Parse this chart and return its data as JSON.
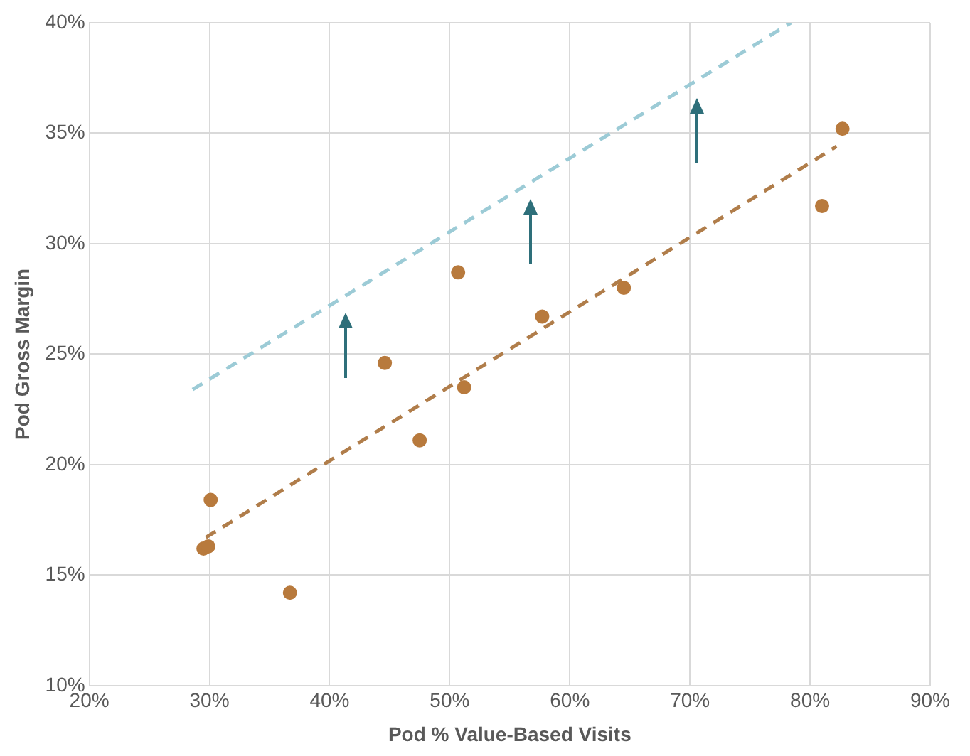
{
  "chart_data": {
    "type": "scatter",
    "xlabel": "Pod % Value-Based Visits",
    "ylabel": "Pod Gross Margin",
    "xlim": [
      20,
      90
    ],
    "xticks": [
      {
        "value": 20,
        "label": "20%"
      },
      {
        "value": 30,
        "label": "30%"
      },
      {
        "value": 40,
        "label": "40%"
      },
      {
        "value": 50,
        "label": "50%"
      },
      {
        "value": 60,
        "label": "60%"
      },
      {
        "value": 70,
        "label": "70%"
      },
      {
        "value": 80,
        "label": "80%"
      },
      {
        "value": 90,
        "label": "90%"
      }
    ],
    "ylim": [
      10,
      40
    ],
    "yticks": [
      {
        "value": 10,
        "label": "10%"
      },
      {
        "value": 15,
        "label": "15%"
      },
      {
        "value": 20,
        "label": "20%"
      },
      {
        "value": 25,
        "label": "25%"
      },
      {
        "value": 30,
        "label": "30%"
      },
      {
        "value": 35,
        "label": "35%"
      },
      {
        "value": 40,
        "label": "40%"
      }
    ],
    "grid": true,
    "marker": "circle",
    "series": [
      {
        "type": "scatter",
        "color": "#b87a3d",
        "x": [
          29.5,
          29.9,
          30.1,
          36.7,
          44.6,
          47.5,
          50.7,
          51.2,
          57.7,
          64.5,
          81.0,
          82.7
        ],
        "values": [
          16.2,
          16.3,
          18.4,
          14.2,
          24.6,
          21.1,
          28.7,
          23.5,
          26.7,
          28.0,
          31.7,
          35.2
        ]
      },
      {
        "type": "line",
        "color": "#b07d4a",
        "line_style": "dashed",
        "marker": "none",
        "x": [
          29.7,
          82.2
        ],
        "values": [
          16.7,
          34.4
        ]
      },
      {
        "type": "line",
        "color": "#9ccbd6",
        "line_style": "dashed",
        "marker": "none",
        "x": [
          28.6,
          78.4
        ],
        "values": [
          23.4,
          40
        ]
      }
    ]
  }
}
